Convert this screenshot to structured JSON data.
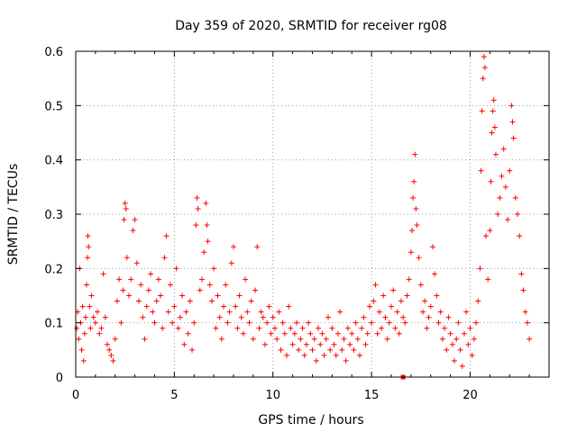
{
  "chart_data": {
    "type": "scatter",
    "title": "Day 359 of 2020, SRMTID for receiver rg08",
    "xlabel": "GPS time / hours",
    "ylabel": "SRMTID / TECUs",
    "xlim": [
      0,
      24
    ],
    "ylim": [
      0,
      0.6
    ],
    "xticks": [
      0,
      5,
      10,
      15,
      20
    ],
    "xtick_labels": [
      "0",
      "5",
      "10",
      "15",
      "20"
    ],
    "yticks": [
      0,
      0.1,
      0.2,
      0.3,
      0.4,
      0.5,
      0.6
    ],
    "ytick_labels": [
      "0",
      "0.1",
      "0.2",
      "0.3",
      "0.4",
      "0.5",
      "0.6"
    ],
    "grid": true,
    "marker": "+",
    "color": "#ff0000",
    "series": [
      {
        "name": "SRMTID",
        "points": [
          [
            0.05,
            0.09
          ],
          [
            0.1,
            0.12
          ],
          [
            0.15,
            0.07
          ],
          [
            0.2,
            0.2
          ],
          [
            0.25,
            0.1
          ],
          [
            0.3,
            0.05
          ],
          [
            0.35,
            0.13
          ],
          [
            0.4,
            0.03
          ],
          [
            0.45,
            0.08
          ],
          [
            0.5,
            0.11
          ],
          [
            0.55,
            0.17
          ],
          [
            0.6,
            0.22
          ],
          [
            0.62,
            0.26
          ],
          [
            0.65,
            0.24
          ],
          [
            0.7,
            0.13
          ],
          [
            0.75,
            0.09
          ],
          [
            0.8,
            0.15
          ],
          [
            0.9,
            0.11
          ],
          [
            1.0,
            0.1
          ],
          [
            1.1,
            0.12
          ],
          [
            1.2,
            0.08
          ],
          [
            1.3,
            0.09
          ],
          [
            1.4,
            0.19
          ],
          [
            1.5,
            0.11
          ],
          [
            1.6,
            0.06
          ],
          [
            1.7,
            0.05
          ],
          [
            1.8,
            0.04
          ],
          [
            1.9,
            0.03
          ],
          [
            2.0,
            0.07
          ],
          [
            2.1,
            0.14
          ],
          [
            2.2,
            0.18
          ],
          [
            2.3,
            0.1
          ],
          [
            2.4,
            0.16
          ],
          [
            2.45,
            0.29
          ],
          [
            2.5,
            0.32
          ],
          [
            2.55,
            0.31
          ],
          [
            2.6,
            0.22
          ],
          [
            2.7,
            0.15
          ],
          [
            2.8,
            0.18
          ],
          [
            2.9,
            0.27
          ],
          [
            3.0,
            0.29
          ],
          [
            3.1,
            0.21
          ],
          [
            3.2,
            0.14
          ],
          [
            3.3,
            0.17
          ],
          [
            3.4,
            0.11
          ],
          [
            3.5,
            0.07
          ],
          [
            3.6,
            0.13
          ],
          [
            3.7,
            0.16
          ],
          [
            3.8,
            0.19
          ],
          [
            3.9,
            0.12
          ],
          [
            4.0,
            0.1
          ],
          [
            4.1,
            0.14
          ],
          [
            4.2,
            0.18
          ],
          [
            4.3,
            0.15
          ],
          [
            4.4,
            0.09
          ],
          [
            4.5,
            0.22
          ],
          [
            4.6,
            0.26
          ],
          [
            4.7,
            0.12
          ],
          [
            4.8,
            0.17
          ],
          [
            4.9,
            0.1
          ],
          [
            5.0,
            0.13
          ],
          [
            5.1,
            0.2
          ],
          [
            5.2,
            0.09
          ],
          [
            5.3,
            0.11
          ],
          [
            5.4,
            0.15
          ],
          [
            5.5,
            0.06
          ],
          [
            5.6,
            0.12
          ],
          [
            5.7,
            0.08
          ],
          [
            5.8,
            0.14
          ],
          [
            5.9,
            0.05
          ],
          [
            6.0,
            0.1
          ],
          [
            6.1,
            0.28
          ],
          [
            6.15,
            0.33
          ],
          [
            6.2,
            0.31
          ],
          [
            6.3,
            0.16
          ],
          [
            6.4,
            0.18
          ],
          [
            6.5,
            0.23
          ],
          [
            6.6,
            0.32
          ],
          [
            6.65,
            0.28
          ],
          [
            6.7,
            0.25
          ],
          [
            6.8,
            0.17
          ],
          [
            6.9,
            0.14
          ],
          [
            7.0,
            0.2
          ],
          [
            7.1,
            0.09
          ],
          [
            7.2,
            0.15
          ],
          [
            7.3,
            0.11
          ],
          [
            7.4,
            0.07
          ],
          [
            7.5,
            0.13
          ],
          [
            7.6,
            0.17
          ],
          [
            7.7,
            0.1
          ],
          [
            7.8,
            0.12
          ],
          [
            7.9,
            0.21
          ],
          [
            8.0,
            0.24
          ],
          [
            8.1,
            0.13
          ],
          [
            8.2,
            0.09
          ],
          [
            8.3,
            0.15
          ],
          [
            8.4,
            0.11
          ],
          [
            8.5,
            0.08
          ],
          [
            8.6,
            0.18
          ],
          [
            8.7,
            0.12
          ],
          [
            8.8,
            0.1
          ],
          [
            8.9,
            0.14
          ],
          [
            9.0,
            0.07
          ],
          [
            9.1,
            0.16
          ],
          [
            9.2,
            0.24
          ],
          [
            9.3,
            0.09
          ],
          [
            9.4,
            0.12
          ],
          [
            9.5,
            0.11
          ],
          [
            9.6,
            0.06
          ],
          [
            9.7,
            0.1
          ],
          [
            9.8,
            0.13
          ],
          [
            9.9,
            0.08
          ],
          [
            10.0,
            0.11
          ],
          [
            10.1,
            0.09
          ],
          [
            10.2,
            0.07
          ],
          [
            10.3,
            0.12
          ],
          [
            10.4,
            0.05
          ],
          [
            10.5,
            0.1
          ],
          [
            10.6,
            0.08
          ],
          [
            10.7,
            0.04
          ],
          [
            10.8,
            0.13
          ],
          [
            10.9,
            0.09
          ],
          [
            11.0,
            0.06
          ],
          [
            11.1,
            0.08
          ],
          [
            11.2,
            0.1
          ],
          [
            11.3,
            0.05
          ],
          [
            11.4,
            0.07
          ],
          [
            11.5,
            0.09
          ],
          [
            11.6,
            0.04
          ],
          [
            11.7,
            0.06
          ],
          [
            11.8,
            0.1
          ],
          [
            11.9,
            0.08
          ],
          [
            12.0,
            0.05
          ],
          [
            12.1,
            0.07
          ],
          [
            12.2,
            0.03
          ],
          [
            12.3,
            0.09
          ],
          [
            12.4,
            0.06
          ],
          [
            12.5,
            0.08
          ],
          [
            12.6,
            0.04
          ],
          [
            12.7,
            0.07
          ],
          [
            12.8,
            0.11
          ],
          [
            12.9,
            0.05
          ],
          [
            13.0,
            0.09
          ],
          [
            13.1,
            0.06
          ],
          [
            13.2,
            0.04
          ],
          [
            13.3,
            0.08
          ],
          [
            13.4,
            0.12
          ],
          [
            13.5,
            0.05
          ],
          [
            13.6,
            0.07
          ],
          [
            13.7,
            0.03
          ],
          [
            13.8,
            0.09
          ],
          [
            13.9,
            0.06
          ],
          [
            14.0,
            0.08
          ],
          [
            14.1,
            0.05
          ],
          [
            14.2,
            0.1
          ],
          [
            14.3,
            0.07
          ],
          [
            14.4,
            0.04
          ],
          [
            14.5,
            0.09
          ],
          [
            14.6,
            0.11
          ],
          [
            14.7,
            0.06
          ],
          [
            14.8,
            0.08
          ],
          [
            14.9,
            0.13
          ],
          [
            15.0,
            0.1
          ],
          [
            15.1,
            0.14
          ],
          [
            15.2,
            0.17
          ],
          [
            15.3,
            0.08
          ],
          [
            15.4,
            0.12
          ],
          [
            15.5,
            0.09
          ],
          [
            15.6,
            0.15
          ],
          [
            15.7,
            0.11
          ],
          [
            15.8,
            0.07
          ],
          [
            15.9,
            0.1
          ],
          [
            16.0,
            0.13
          ],
          [
            16.1,
            0.16
          ],
          [
            16.2,
            0.09
          ],
          [
            16.3,
            0.12
          ],
          [
            16.4,
            0.08
          ],
          [
            16.5,
            0.14
          ],
          [
            16.6,
            0.11
          ],
          [
            16.7,
            0.1
          ],
          [
            16.8,
            0.15
          ],
          [
            16.9,
            0.18
          ],
          [
            17.0,
            0.23
          ],
          [
            17.05,
            0.27
          ],
          [
            17.1,
            0.33
          ],
          [
            17.15,
            0.36
          ],
          [
            17.2,
            0.41
          ],
          [
            17.25,
            0.31
          ],
          [
            17.3,
            0.28
          ],
          [
            17.4,
            0.22
          ],
          [
            17.5,
            0.17
          ],
          [
            17.6,
            0.12
          ],
          [
            17.7,
            0.14
          ],
          [
            17.8,
            0.09
          ],
          [
            17.9,
            0.11
          ],
          [
            18.0,
            0.13
          ],
          [
            18.1,
            0.24
          ],
          [
            18.2,
            0.19
          ],
          [
            18.3,
            0.15
          ],
          [
            18.4,
            0.1
          ],
          [
            18.5,
            0.12
          ],
          [
            18.6,
            0.07
          ],
          [
            18.7,
            0.09
          ],
          [
            18.8,
            0.05
          ],
          [
            18.9,
            0.11
          ],
          [
            19.0,
            0.08
          ],
          [
            19.1,
            0.06
          ],
          [
            19.2,
            0.03
          ],
          [
            19.3,
            0.07
          ],
          [
            19.4,
            0.1
          ],
          [
            19.5,
            0.05
          ],
          [
            19.6,
            0.02
          ],
          [
            19.7,
            0.08
          ],
          [
            19.8,
            0.12
          ],
          [
            19.9,
            0.06
          ],
          [
            20.0,
            0.09
          ],
          [
            20.1,
            0.04
          ],
          [
            20.2,
            0.07
          ],
          [
            20.3,
            0.1
          ],
          [
            20.4,
            0.14
          ],
          [
            20.5,
            0.2
          ],
          [
            20.55,
            0.38
          ],
          [
            20.6,
            0.49
          ],
          [
            20.65,
            0.55
          ],
          [
            20.7,
            0.59
          ],
          [
            20.75,
            0.57
          ],
          [
            20.8,
            0.26
          ],
          [
            20.9,
            0.18
          ],
          [
            21.0,
            0.27
          ],
          [
            21.05,
            0.36
          ],
          [
            21.1,
            0.45
          ],
          [
            21.15,
            0.49
          ],
          [
            21.2,
            0.51
          ],
          [
            21.25,
            0.46
          ],
          [
            21.3,
            0.41
          ],
          [
            21.4,
            0.3
          ],
          [
            21.5,
            0.33
          ],
          [
            21.6,
            0.37
          ],
          [
            21.7,
            0.42
          ],
          [
            21.8,
            0.35
          ],
          [
            21.9,
            0.29
          ],
          [
            22.0,
            0.38
          ],
          [
            22.1,
            0.5
          ],
          [
            22.15,
            0.47
          ],
          [
            22.2,
            0.44
          ],
          [
            22.3,
            0.33
          ],
          [
            22.4,
            0.3
          ],
          [
            22.5,
            0.26
          ],
          [
            22.6,
            0.19
          ],
          [
            22.7,
            0.16
          ],
          [
            22.8,
            0.12
          ],
          [
            22.9,
            0.1
          ],
          [
            23.0,
            0.07
          ]
        ]
      },
      {
        "name": "marker",
        "style": "square",
        "points": [
          [
            16.6,
            0.0
          ]
        ]
      }
    ]
  }
}
